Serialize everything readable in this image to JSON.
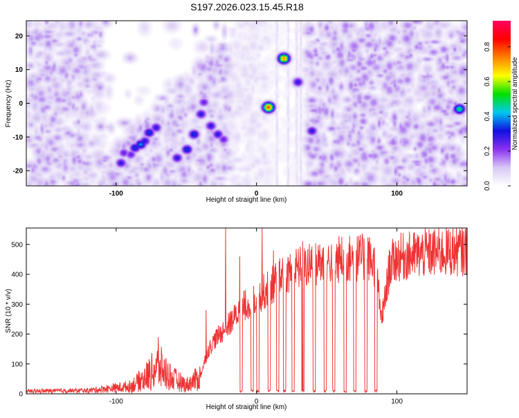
{
  "title": "S197.2026.023.15.45.R18",
  "chart_data": [
    {
      "type": "heatmap",
      "xlabel": "Height of straight line (km)",
      "ylabel": "Frequency (Hz)",
      "xlim": [
        -164,
        150
      ],
      "ylim": [
        -24.5,
        24.5
      ],
      "xticks": [
        -100,
        0,
        100
      ],
      "xtick_labels": [
        "-100",
        "0",
        "100"
      ],
      "yticks": [
        -20,
        -10,
        0,
        10,
        20
      ],
      "ytick_labels": [
        "-20",
        "-10",
        "0",
        "10",
        "20"
      ],
      "colorbar": {
        "label": "Normalized spectral amplitude",
        "range": [
          0.0,
          0.95
        ],
        "ticks": [
          0.0,
          0.2,
          0.4,
          0.6,
          0.8
        ],
        "tick_labels": [
          "0.0",
          "0.2",
          "0.4",
          "0.6",
          "0.8"
        ],
        "colors": [
          "#ffffff",
          "#d8c8f4",
          "#8a30f0",
          "#1010e0",
          "#00c8f0",
          "#00e000",
          "#ffff00",
          "#ff8000",
          "#ff0000",
          "#ff0060"
        ]
      },
      "hotspots": [
        {
          "x": -97,
          "y": -17.5,
          "amp": 0.3
        },
        {
          "x": -95,
          "y": -14.5,
          "amp": 0.25
        },
        {
          "x": -90,
          "y": -15,
          "amp": 0.25
        },
        {
          "x": -87,
          "y": -13,
          "amp": 0.35
        },
        {
          "x": -83,
          "y": -12,
          "amp": 0.4
        },
        {
          "x": -80,
          "y": -11,
          "amp": 0.3
        },
        {
          "x": -77,
          "y": -8.5,
          "amp": 0.35
        },
        {
          "x": -72,
          "y": -7,
          "amp": 0.3
        },
        {
          "x": -57,
          "y": -16,
          "amp": 0.3
        },
        {
          "x": -50,
          "y": -13.5,
          "amp": 0.35
        },
        {
          "x": -45,
          "y": -9,
          "amp": 0.35
        },
        {
          "x": -40,
          "y": -3,
          "amp": 0.3
        },
        {
          "x": -38,
          "y": 0.5,
          "amp": 0.25
        },
        {
          "x": -33,
          "y": -6.5,
          "amp": 0.3
        },
        {
          "x": -28,
          "y": -9,
          "amp": 0.3
        },
        {
          "x": -24,
          "y": -10.5,
          "amp": 0.25
        },
        {
          "x": 8,
          "y": -1,
          "amp": 0.8
        },
        {
          "x": 19,
          "y": 13.5,
          "amp": 0.75
        },
        {
          "x": 29,
          "y": 6.5,
          "amp": 0.3
        },
        {
          "x": 39,
          "y": -8,
          "amp": 0.3
        },
        {
          "x": 144,
          "y": -1.5,
          "amp": 0.5
        }
      ]
    },
    {
      "type": "line",
      "xlabel": "Height of straight line (km)",
      "ylabel": "SNR (10 * v/v)",
      "xlim": [
        -164,
        150
      ],
      "ylim": [
        0,
        555
      ],
      "xticks": [
        -100,
        0,
        100
      ],
      "xtick_labels": [
        "-100",
        "0",
        "100"
      ],
      "yticks": [
        0,
        100,
        200,
        300,
        400,
        500
      ],
      "ytick_labels": [
        "0",
        "100",
        "200",
        "300",
        "400",
        "500"
      ],
      "color": "#ee3333",
      "series": [
        {
          "name": "SNR",
          "envelope_x": [
            -164,
            -120,
            -90,
            -80,
            -70,
            -60,
            -50,
            -40,
            -35,
            -30,
            -20,
            -10,
            0,
            10,
            20,
            30,
            40,
            50,
            60,
            70,
            80,
            86,
            88,
            90,
            95,
            100,
            120,
            150
          ],
          "envelope_y": [
            8,
            10,
            25,
            55,
            100,
            55,
            30,
            60,
            140,
            180,
            230,
            290,
            320,
            360,
            400,
            420,
            430,
            440,
            450,
            455,
            455,
            420,
            260,
            270,
            430,
            455,
            470,
            480
          ],
          "dropouts_x": [
            -11,
            -3,
            1,
            9,
            15,
            20,
            26,
            33,
            41,
            49,
            55,
            63,
            70,
            78,
            85
          ],
          "dropout_value": 5,
          "spikes": [
            {
              "x": -22,
              "y": 555
            },
            {
              "x": -12,
              "y": 460
            },
            {
              "x": 4,
              "y": 555
            },
            {
              "x": -70,
              "y": 190
            },
            {
              "x": -36,
              "y": 280
            },
            {
              "x": 12,
              "y": 480
            },
            {
              "x": 33,
              "y": 510
            },
            {
              "x": 45,
              "y": 500
            }
          ]
        }
      ]
    }
  ]
}
